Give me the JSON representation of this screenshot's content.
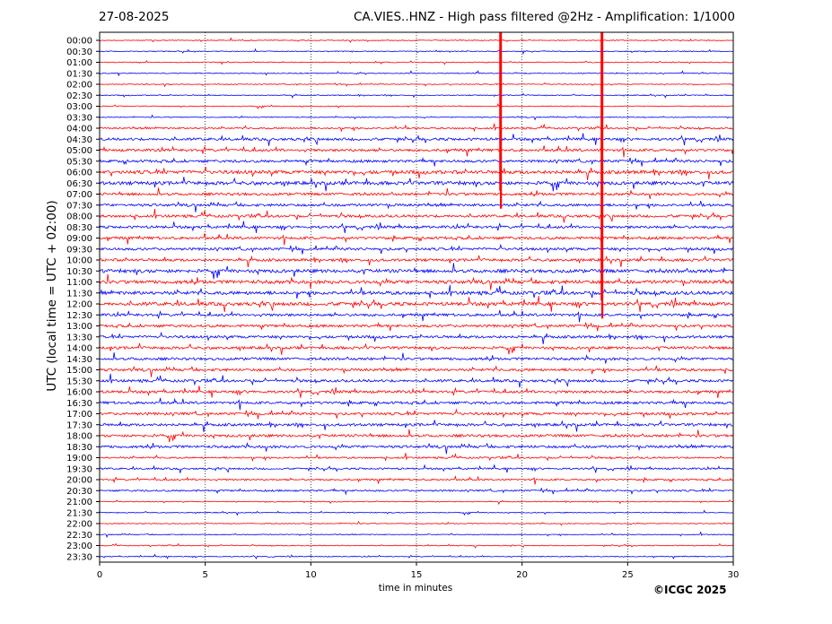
{
  "header": {
    "date": "27-08-2025",
    "title": "CA.VIES..HNZ - High pass filtered @2Hz - Amplification: 1/1000"
  },
  "footer": {
    "credit": "©ICGC 2025"
  },
  "colors": {
    "trace_a": "#ff0000",
    "trace_b": "#0000ff",
    "axes": "#000000"
  },
  "chart_data": {
    "type": "line",
    "subtype": "helicorder-seismogram",
    "title": "CA.VIES..HNZ - High pass filtered @2Hz - Amplification: 1/1000",
    "xlabel": "time in minutes",
    "ylabel": "UTC (local time = UTC + 02:00)",
    "xlim": [
      0,
      30
    ],
    "xticks": [
      "0",
      "5",
      "10",
      "15",
      "20",
      "25",
      "30"
    ],
    "vertical_gridlines": [
      5,
      10,
      15,
      20,
      25
    ],
    "grid_style": "dotted",
    "row_labels": [
      "00:00",
      "00:30",
      "01:00",
      "01:30",
      "02:00",
      "02:30",
      "03:00",
      "03:30",
      "04:00",
      "04:30",
      "05:00",
      "05:30",
      "06:00",
      "06:30",
      "07:00",
      "07:30",
      "08:00",
      "08:30",
      "09:00",
      "09:30",
      "10:00",
      "10:30",
      "11:00",
      "11:30",
      "12:00",
      "12:30",
      "13:00",
      "13:30",
      "14:00",
      "14:30",
      "15:00",
      "15:30",
      "16:00",
      "16:30",
      "17:00",
      "17:30",
      "18:00",
      "18:30",
      "19:00",
      "19:30",
      "20:00",
      "20:30",
      "21:00",
      "21:30",
      "22:00",
      "22:30",
      "23:00",
      "23:30"
    ],
    "row_colors": [
      "red",
      "blue"
    ],
    "row_amplitude": [
      1,
      1,
      1,
      1,
      1,
      1,
      1,
      1,
      2,
      3,
      3,
      3,
      4,
      4,
      3,
      3,
      3,
      3,
      3,
      3,
      3,
      4,
      4,
      4,
      4,
      3,
      3,
      3,
      3,
      3,
      3,
      3,
      3,
      3,
      3,
      3,
      3,
      3,
      2,
      2,
      2,
      2,
      1,
      1,
      1,
      1,
      1,
      1
    ],
    "saturation_events": [
      {
        "start_row": "00:00",
        "end_row": "07:30",
        "minute": 19.0
      },
      {
        "start_row": "00:00",
        "end_row": "12:30",
        "minute": 23.8
      }
    ]
  }
}
